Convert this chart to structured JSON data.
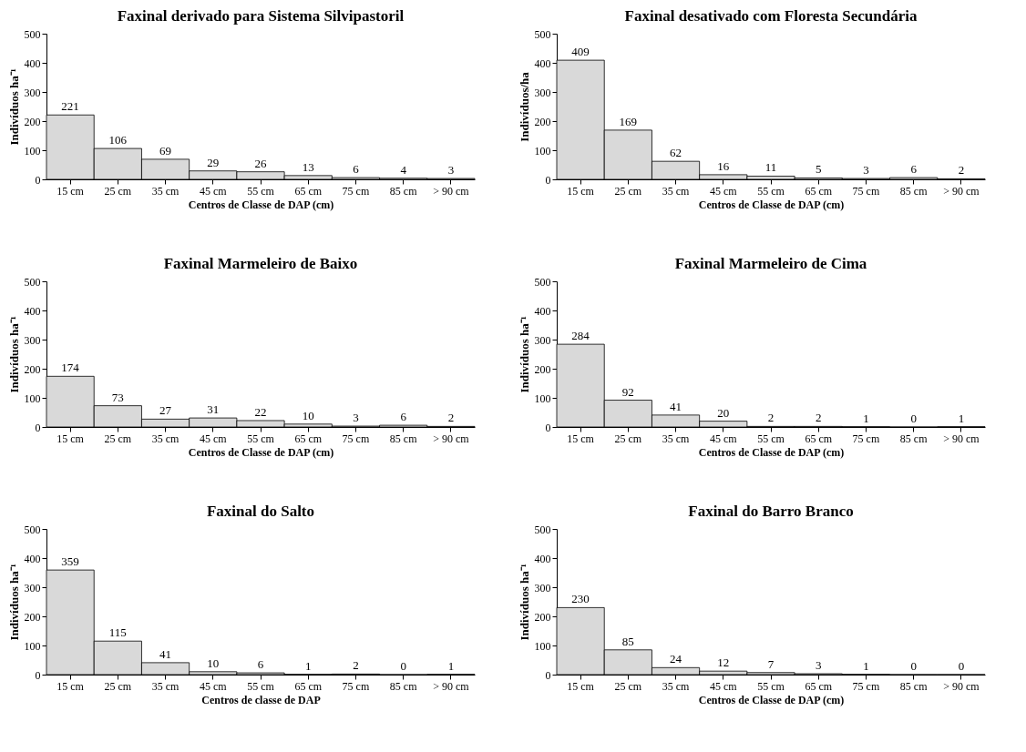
{
  "chart_data": [
    {
      "type": "bar",
      "title": "Faxinal derivado para Sistema Silvipastoril",
      "xlabel": "Centros de Classe  de DAP (cm)",
      "ylabel": "Indivíduos ha⁻¹",
      "categories": [
        "15 cm",
        "25 cm",
        "35 cm",
        "45 cm",
        "55 cm",
        "65 cm",
        "75 cm",
        "85 cm",
        "> 90 cm"
      ],
      "values": [
        221,
        106,
        69,
        29,
        26,
        13,
        6,
        4,
        3
      ],
      "color": "#d9d9d9",
      "ylim": [
        0,
        500
      ],
      "yticks": [
        0,
        100,
        200,
        300,
        400,
        500
      ],
      "data_labels": true
    },
    {
      "type": "bar",
      "title": "Faxinal desativado com Floresta Secundária",
      "xlabel": "Centros de Classe  de DAP (cm)",
      "ylabel": "Indivíduos/ha",
      "categories": [
        "15 cm",
        "25 cm",
        "35 cm",
        "45 cm",
        "55 cm",
        "65 cm",
        "75 cm",
        "85 cm",
        "> 90 cm"
      ],
      "values": [
        409,
        169,
        62,
        16,
        11,
        5,
        3,
        6,
        2
      ],
      "color": "#d9d9d9",
      "ylim": [
        0,
        500
      ],
      "yticks": [
        0,
        100,
        200,
        300,
        400,
        500
      ],
      "data_labels": true
    },
    {
      "type": "bar",
      "title": "Faxinal Marmeleiro de Baixo",
      "xlabel": "Centros de Classe  de DAP (cm)",
      "ylabel": "Indivíduos ha⁻¹",
      "categories": [
        "15 cm",
        "25 cm",
        "35 cm",
        "45 cm",
        "55 cm",
        "65 cm",
        "75 cm",
        "85 cm",
        "> 90 cm"
      ],
      "values": [
        174,
        73,
        27,
        31,
        22,
        10,
        3,
        6,
        2
      ],
      "color": "#d9d9d9",
      "ylim": [
        0,
        500
      ],
      "yticks": [
        0,
        100,
        200,
        300,
        400,
        500
      ],
      "data_labels": true
    },
    {
      "type": "bar",
      "title": "Faxinal Marmeleiro de Cima",
      "xlabel": "Centros de Classe  de DAP (cm)",
      "ylabel": "Indivíduos ha⁻¹",
      "categories": [
        "15 cm",
        "25 cm",
        "35 cm",
        "45 cm",
        "55 cm",
        "65 cm",
        "75 cm",
        "85 cm",
        "> 90 cm"
      ],
      "values": [
        284,
        92,
        41,
        20,
        2,
        2,
        1,
        0,
        1
      ],
      "color": "#d9d9d9",
      "ylim": [
        0,
        500
      ],
      "yticks": [
        0,
        100,
        200,
        300,
        400,
        500
      ],
      "data_labels": true
    },
    {
      "type": "bar",
      "title": "Faxinal do Salto",
      "xlabel": "Centros de classe de DAP",
      "ylabel": "Indivíduos ha⁻¹",
      "categories": [
        "15 cm",
        "25 cm",
        "35 cm",
        "45 cm",
        "55 cm",
        "65 cm",
        "75 cm",
        "85 cm",
        "> 90 cm"
      ],
      "values": [
        359,
        115,
        41,
        10,
        6,
        1,
        2,
        0,
        1
      ],
      "color": "#d9d9d9",
      "ylim": [
        0,
        500
      ],
      "yticks": [
        0,
        100,
        200,
        300,
        400,
        500
      ],
      "data_labels": true
    },
    {
      "type": "bar",
      "title": "Faxinal do Barro Branco",
      "xlabel": "Centros de Classe  de DAP (cm)",
      "ylabel": "Indivíduos ha⁻¹",
      "categories": [
        "15 cm",
        "25 cm",
        "35 cm",
        "45 cm",
        "55 cm",
        "65 cm",
        "75 cm",
        "85 cm",
        "> 90 cm"
      ],
      "values": [
        230,
        85,
        24,
        12,
        7,
        3,
        1,
        0,
        0
      ],
      "color": "#d9d9d9",
      "ylim": [
        0,
        500
      ],
      "yticks": [
        0,
        100,
        200,
        300,
        400,
        500
      ],
      "data_labels": true
    }
  ]
}
